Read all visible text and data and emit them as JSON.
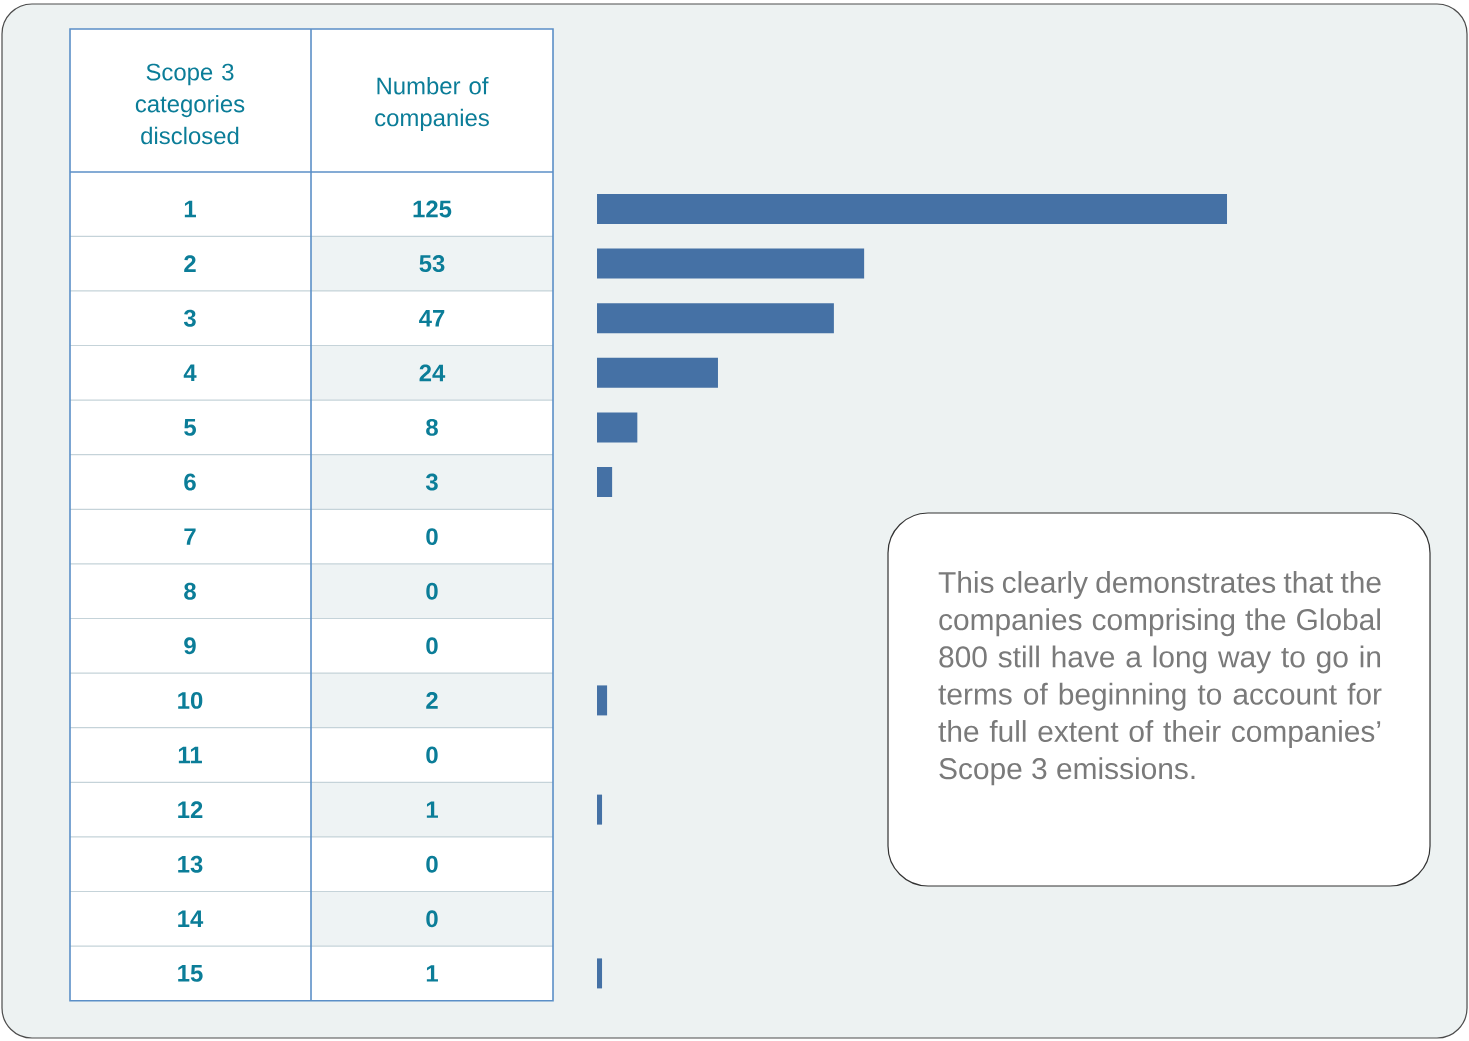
{
  "chart_data": {
    "type": "bar",
    "orientation": "horizontal",
    "ylabel": "Scope 3 categories disclosed",
    "xlabel": "Number of companies",
    "categories": [
      "1",
      "2",
      "3",
      "4",
      "5",
      "6",
      "7",
      "8",
      "9",
      "10",
      "11",
      "12",
      "13",
      "14",
      "15"
    ],
    "values": [
      125,
      53,
      47,
      24,
      8,
      3,
      0,
      0,
      0,
      2,
      0,
      1,
      0,
      0,
      1
    ],
    "color": "#4571a5",
    "data_labels": true,
    "annotations": [
      "This clearly demonstrates that the companies comprising the Global 800 still have a long way to go in terms of beginning to account for the full extent of their companies’ Scope 3 emissions."
    ]
  }
}
